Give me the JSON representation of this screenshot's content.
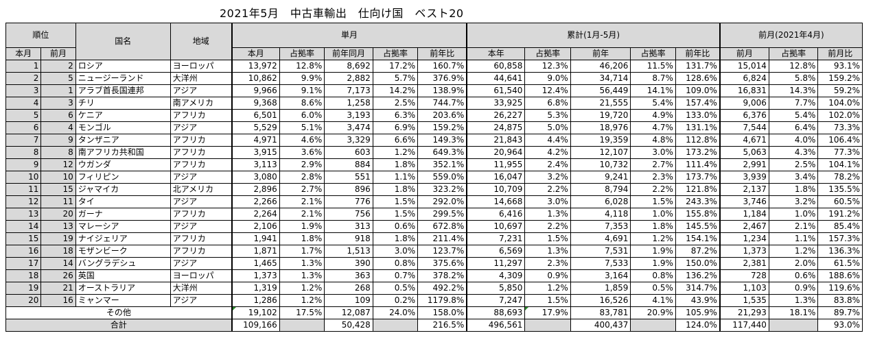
{
  "title": "2021年5月　中古車輸出　仕向け国　ベスト20",
  "headers": {
    "rank": "順位",
    "country": "国名",
    "region": "地域",
    "monthly": "単月",
    "cumulative": "累計(1月-5月)",
    "prev_month": "前月(2021年4月)",
    "this_month_rank": "本月",
    "prev_month_rank": "前月",
    "m_this": "本月",
    "m_share": "占拠率",
    "m_ly": "前年同月",
    "m_ly_share": "占拠率",
    "m_yoy": "前年比",
    "c_this": "本年",
    "c_share": "占拠率",
    "c_ly": "前年",
    "c_ly_share": "占拠率",
    "c_yoy": "前年比",
    "p_val": "前月",
    "p_share": "占拠率",
    "p_ratio": "前月比"
  },
  "rows": [
    {
      "r": "1",
      "pr": "2",
      "country": "ロシア",
      "region": "ヨーロッパ",
      "m": "13,972",
      "ms": "12.8%",
      "ly": "8,692",
      "lys": "17.2%",
      "yoy": "160.7%",
      "c": "60,858",
      "cs": "12.3%",
      "cly": "46,206",
      "clys": "11.5%",
      "cyoy": "131.7%",
      "p": "15,014",
      "ps": "12.8%",
      "pr2": "93.1%"
    },
    {
      "r": "2",
      "pr": "5",
      "country": "ニュージーランド",
      "region": "大洋州",
      "m": "10,862",
      "ms": "9.9%",
      "ly": "2,882",
      "lys": "5.7%",
      "yoy": "376.9%",
      "c": "44,641",
      "cs": "9.0%",
      "cly": "34,714",
      "clys": "8.7%",
      "cyoy": "128.6%",
      "p": "6,824",
      "ps": "5.8%",
      "pr2": "159.2%"
    },
    {
      "r": "3",
      "pr": "1",
      "country": "アラブ首長国連邦",
      "region": "アジア",
      "m": "9,966",
      "ms": "9.1%",
      "ly": "7,173",
      "lys": "14.2%",
      "yoy": "138.9%",
      "c": "61,540",
      "cs": "12.4%",
      "cly": "56,449",
      "clys": "14.1%",
      "cyoy": "109.0%",
      "p": "16,831",
      "ps": "14.3%",
      "pr2": "59.2%"
    },
    {
      "r": "4",
      "pr": "3",
      "country": "チリ",
      "region": "南アメリカ",
      "m": "9,368",
      "ms": "8.6%",
      "ly": "1,258",
      "lys": "2.5%",
      "yoy": "744.7%",
      "c": "33,925",
      "cs": "6.8%",
      "cly": "21,555",
      "clys": "5.4%",
      "cyoy": "157.4%",
      "p": "9,006",
      "ps": "7.7%",
      "pr2": "104.0%"
    },
    {
      "r": "5",
      "pr": "6",
      "country": "ケニア",
      "region": "アフリカ",
      "m": "6,501",
      "ms": "6.0%",
      "ly": "3,193",
      "lys": "6.3%",
      "yoy": "203.6%",
      "c": "26,227",
      "cs": "5.3%",
      "cly": "19,720",
      "clys": "4.9%",
      "cyoy": "133.0%",
      "p": "6,376",
      "ps": "5.4%",
      "pr2": "102.0%"
    },
    {
      "r": "6",
      "pr": "4",
      "country": "モンゴル",
      "region": "アジア",
      "m": "5,529",
      "ms": "5.1%",
      "ly": "3,474",
      "lys": "6.9%",
      "yoy": "159.2%",
      "c": "24,875",
      "cs": "5.0%",
      "cly": "18,976",
      "clys": "4.7%",
      "cyoy": "131.1%",
      "p": "7,544",
      "ps": "6.4%",
      "pr2": "73.3%"
    },
    {
      "r": "7",
      "pr": "9",
      "country": "タンザニア",
      "region": "アフリカ",
      "m": "4,971",
      "ms": "4.6%",
      "ly": "3,329",
      "lys": "6.6%",
      "yoy": "149.3%",
      "c": "21,843",
      "cs": "4.4%",
      "cly": "19,359",
      "clys": "4.8%",
      "cyoy": "112.8%",
      "p": "4,671",
      "ps": "4.0%",
      "pr2": "106.4%"
    },
    {
      "r": "8",
      "pr": "8",
      "country": "南アフリカ共和国",
      "region": "アフリカ",
      "m": "3,915",
      "ms": "3.6%",
      "ly": "603",
      "lys": "1.2%",
      "yoy": "649.3%",
      "c": "20,964",
      "cs": "4.2%",
      "cly": "12,107",
      "clys": "3.0%",
      "cyoy": "173.2%",
      "p": "5,063",
      "ps": "4.3%",
      "pr2": "77.3%"
    },
    {
      "r": "9",
      "pr": "12",
      "country": "ウガンダ",
      "region": "アフリカ",
      "m": "3,113",
      "ms": "2.9%",
      "ly": "884",
      "lys": "1.8%",
      "yoy": "352.1%",
      "c": "11,955",
      "cs": "2.4%",
      "cly": "10,732",
      "clys": "2.7%",
      "cyoy": "111.4%",
      "p": "2,991",
      "ps": "2.5%",
      "pr2": "104.1%"
    },
    {
      "r": "10",
      "pr": "10",
      "country": "フィリピン",
      "region": "アジア",
      "m": "3,080",
      "ms": "2.8%",
      "ly": "551",
      "lys": "1.1%",
      "yoy": "559.0%",
      "c": "16,047",
      "cs": "3.2%",
      "cly": "9,241",
      "clys": "2.3%",
      "cyoy": "173.7%",
      "p": "3,939",
      "ps": "3.4%",
      "pr2": "78.2%"
    },
    {
      "r": "11",
      "pr": "15",
      "country": "ジャマイカ",
      "region": "北アメリカ",
      "m": "2,896",
      "ms": "2.7%",
      "ly": "896",
      "lys": "1.8%",
      "yoy": "323.2%",
      "c": "10,709",
      "cs": "2.2%",
      "cly": "8,794",
      "clys": "2.2%",
      "cyoy": "121.8%",
      "p": "2,137",
      "ps": "1.8%",
      "pr2": "135.5%"
    },
    {
      "r": "12",
      "pr": "11",
      "country": "タイ",
      "region": "アジア",
      "m": "2,266",
      "ms": "2.1%",
      "ly": "776",
      "lys": "1.5%",
      "yoy": "292.0%",
      "c": "14,668",
      "cs": "3.0%",
      "cly": "6,028",
      "clys": "1.5%",
      "cyoy": "243.3%",
      "p": "3,746",
      "ps": "3.2%",
      "pr2": "60.5%"
    },
    {
      "r": "13",
      "pr": "20",
      "country": "ガーナ",
      "region": "アフリカ",
      "m": "2,264",
      "ms": "2.1%",
      "ly": "756",
      "lys": "1.5%",
      "yoy": "299.5%",
      "c": "6,416",
      "cs": "1.3%",
      "cly": "4,118",
      "clys": "1.0%",
      "cyoy": "155.8%",
      "p": "1,184",
      "ps": "1.0%",
      "pr2": "191.2%"
    },
    {
      "r": "14",
      "pr": "13",
      "country": "マレーシア",
      "region": "アジア",
      "m": "2,106",
      "ms": "1.9%",
      "ly": "313",
      "lys": "0.6%",
      "yoy": "672.8%",
      "c": "10,697",
      "cs": "2.2%",
      "cly": "7,353",
      "clys": "1.8%",
      "cyoy": "145.5%",
      "p": "2,467",
      "ps": "2.1%",
      "pr2": "85.4%"
    },
    {
      "r": "15",
      "pr": "19",
      "country": "ナイジェリア",
      "region": "アフリカ",
      "m": "1,941",
      "ms": "1.8%",
      "ly": "918",
      "lys": "1.8%",
      "yoy": "211.4%",
      "c": "7,231",
      "cs": "1.5%",
      "cly": "4,691",
      "clys": "1.2%",
      "cyoy": "154.1%",
      "p": "1,234",
      "ps": "1.1%",
      "pr2": "157.3%"
    },
    {
      "r": "16",
      "pr": "18",
      "country": "モザンビーク",
      "region": "アフリカ",
      "m": "1,871",
      "ms": "1.7%",
      "ly": "1,513",
      "lys": "3.0%",
      "yoy": "123.7%",
      "c": "6,569",
      "cs": "1.3%",
      "cly": "7,531",
      "clys": "1.9%",
      "cyoy": "87.2%",
      "p": "1,373",
      "ps": "1.2%",
      "pr2": "136.3%"
    },
    {
      "r": "17",
      "pr": "14",
      "country": "バングラデシュ",
      "region": "アジア",
      "m": "1,465",
      "ms": "1.3%",
      "ly": "390",
      "lys": "0.8%",
      "yoy": "375.6%",
      "c": "11,297",
      "cs": "2.3%",
      "cly": "7,533",
      "clys": "1.9%",
      "cyoy": "150.0%",
      "p": "2,381",
      "ps": "2.0%",
      "pr2": "61.5%"
    },
    {
      "r": "18",
      "pr": "26",
      "country": "英国",
      "region": "ヨーロッパ",
      "m": "1,373",
      "ms": "1.3%",
      "ly": "363",
      "lys": "0.7%",
      "yoy": "378.2%",
      "c": "4,309",
      "cs": "0.9%",
      "cly": "3,164",
      "clys": "0.8%",
      "cyoy": "136.2%",
      "p": "728",
      "ps": "0.6%",
      "pr2": "188.6%"
    },
    {
      "r": "19",
      "pr": "21",
      "country": "オーストラリア",
      "region": "大洋州",
      "m": "1,319",
      "ms": "1.2%",
      "ly": "268",
      "lys": "0.5%",
      "yoy": "492.2%",
      "c": "5,850",
      "cs": "1.2%",
      "cly": "1,859",
      "clys": "0.5%",
      "cyoy": "314.7%",
      "p": "1,103",
      "ps": "0.9%",
      "pr2": "119.6%"
    },
    {
      "r": "20",
      "pr": "16",
      "country": "ミャンマー",
      "region": "アジア",
      "m": "1,286",
      "ms": "1.2%",
      "ly": "109",
      "lys": "0.2%",
      "yoy": "1179.8%",
      "c": "7,247",
      "cs": "1.5%",
      "cly": "16,526",
      "clys": "4.1%",
      "cyoy": "43.9%",
      "p": "1,535",
      "ps": "1.3%",
      "pr2": "83.8%"
    }
  ],
  "other": {
    "label": "その他",
    "m": "19,102",
    "ms": "17.5%",
    "ly": "12,087",
    "lys": "24.0%",
    "yoy": "158.0%",
    "c": "88,693",
    "cs": "17.9%",
    "cly": "83,781",
    "clys": "20.9%",
    "cyoy": "105.9%",
    "p": "21,293",
    "ps": "18.1%",
    "pr2": "89.7%"
  },
  "total": {
    "label": "合計",
    "m": "109,166",
    "ly": "50,428",
    "yoy": "216.5%",
    "c": "496,561",
    "cly": "400,437",
    "cyoy": "124.0%",
    "p": "117,440",
    "pr2": "93.0%"
  }
}
